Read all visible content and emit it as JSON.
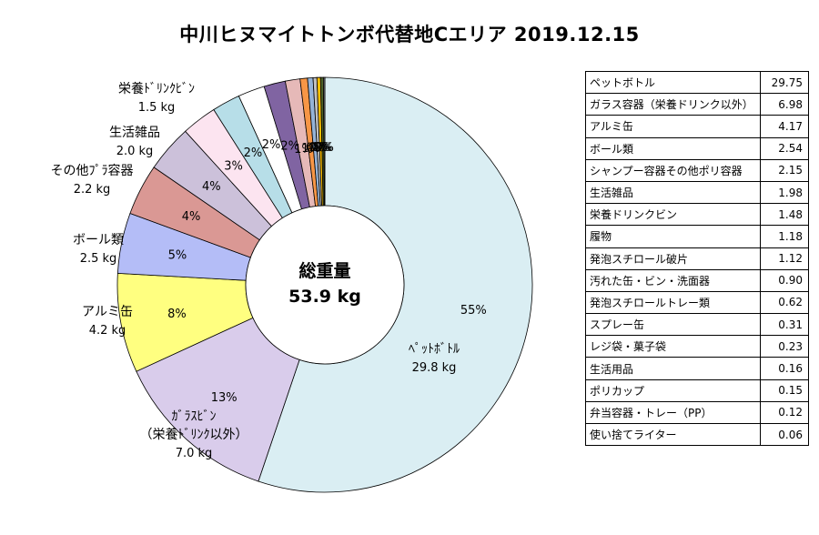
{
  "title": "中川ヒヌマイトトンボ代替地Cエリア 2019.12.15",
  "center_label": {
    "line1": "総重量",
    "line2": "53.9 kg"
  },
  "chart_data": {
    "type": "pie",
    "title": "中川ヒヌマイトトンボ代替地Cエリア 2019.12.15",
    "total_label": "総重量",
    "total_value": "53.9 kg",
    "slices": [
      {
        "name": "ペットボトル",
        "value": 29.75,
        "percent": "55%",
        "outer_label": [
          "ﾍﾟｯﾄﾎﾞﾄﾙ",
          "29.8 kg"
        ],
        "color": "#DAEEF3"
      },
      {
        "name": "ガラス容器（栄養ドリンク以外）",
        "value": 6.98,
        "percent": "13%",
        "outer_label": [
          "ｶﾞﾗｽﾋﾞﾝ",
          "（栄養ﾄﾞﾘﾝｸ以外）",
          "7.0 kg"
        ],
        "color": "#D9CCEB"
      },
      {
        "name": "アルミ缶",
        "value": 4.17,
        "percent": "8%",
        "outer_label": [
          "アルミ缶",
          "4.2 kg"
        ],
        "color": "#FFFF80"
      },
      {
        "name": "ボール類",
        "value": 2.54,
        "percent": "5%",
        "outer_label": [
          "ボール類",
          "2.5 kg"
        ],
        "color": "#B4BDF7"
      },
      {
        "name": "シャンプー容器その他ポリ容器",
        "value": 2.15,
        "percent": "4%",
        "outer_label": [
          "その他ﾌﾟﾗ容器",
          "2.2 kg"
        ],
        "color": "#DA9894"
      },
      {
        "name": "生活雑品",
        "value": 1.98,
        "percent": "4%",
        "outer_label": [
          "生活雑品",
          "2.0 kg"
        ],
        "color": "#CCC1DA"
      },
      {
        "name": "栄養ドリンクビン",
        "value": 1.48,
        "percent": "3%",
        "outer_label": [
          "栄養ﾄﾞﾘﾝｸﾋﾞﾝ",
          "1.5 kg"
        ],
        "color": "#FCE4F0"
      },
      {
        "name": "履物",
        "value": 1.18,
        "percent": "2%",
        "outer_label": [],
        "color": "#B7DEE8"
      },
      {
        "name": "発泡スチロール破片",
        "value": 1.12,
        "percent": "2%",
        "outer_label": [],
        "color": "#FFFFFF"
      },
      {
        "name": "汚れた缶・ビン・洗面器",
        "value": 0.9,
        "percent": "2%",
        "outer_label": [],
        "color": "#8064A2"
      },
      {
        "name": "発泡スチロールトレー類",
        "value": 0.62,
        "percent": "1%",
        "outer_label": [],
        "color": "#E6B9B8"
      },
      {
        "name": "スプレー缶",
        "value": 0.31,
        "percent": "1%",
        "outer_label": [],
        "color": "#F79646"
      },
      {
        "name": "レジ袋・菓子袋",
        "value": 0.23,
        "percent": "0%",
        "outer_label": [],
        "color": "#95B3D7"
      },
      {
        "name": "生活用品",
        "value": 0.16,
        "percent": "0%",
        "outer_label": [],
        "color": "#C0C0C0"
      },
      {
        "name": "ポリカップ",
        "value": 0.15,
        "percent": "0%",
        "outer_label": [],
        "color": "#FFC000"
      },
      {
        "name": "弁当容器・トレー（PP）",
        "value": 0.12,
        "percent": "0%",
        "outer_label": [],
        "color": "#4F6228"
      },
      {
        "name": "使い捨てライター",
        "value": 0.06,
        "percent": "0%",
        "outer_label": [],
        "color": "#808080"
      }
    ]
  },
  "table": {
    "rows": [
      {
        "name": "ペットボトル",
        "value": "29.75"
      },
      {
        "name": "ガラス容器（栄養ドリンク以外）",
        "value": "6.98"
      },
      {
        "name": "アルミ缶",
        "value": "4.17"
      },
      {
        "name": "ボール類",
        "value": "2.54"
      },
      {
        "name": "シャンプー容器その他ポリ容器",
        "value": "2.15"
      },
      {
        "name": "生活雑品",
        "value": "1.98"
      },
      {
        "name": "栄養ドリンクビン",
        "value": "1.48"
      },
      {
        "name": "履物",
        "value": "1.18"
      },
      {
        "name": "発泡スチロール破片",
        "value": "1.12"
      },
      {
        "name": "汚れた缶・ビン・洗面器",
        "value": "0.90"
      },
      {
        "name": "発泡スチロールトレー類",
        "value": "0.62"
      },
      {
        "name": "スプレー缶",
        "value": "0.31"
      },
      {
        "name": "レジ袋・菓子袋",
        "value": "0.23"
      },
      {
        "name": "生活用品",
        "value": "0.16"
      },
      {
        "name": "ポリカップ",
        "value": "0.15"
      },
      {
        "name": "弁当容器・トレー（PP）",
        "value": "0.12"
      },
      {
        "name": "使い捨てライター",
        "value": "0.06"
      }
    ]
  }
}
